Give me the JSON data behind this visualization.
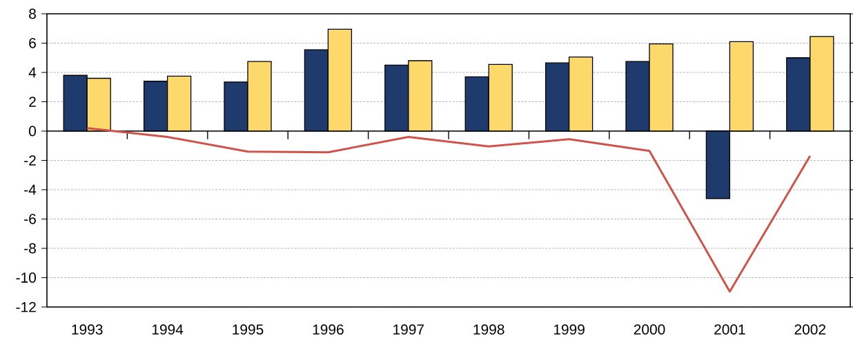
{
  "chart_data": {
    "type": "bar",
    "categories": [
      "1993",
      "1994",
      "1995",
      "1996",
      "1997",
      "1998",
      "1999",
      "2000",
      "2001",
      "2002"
    ],
    "series": [
      {
        "color": "#1f3b6e",
        "values": [
          3.8,
          3.4,
          3.35,
          5.55,
          4.5,
          3.7,
          4.65,
          4.75,
          -4.6,
          5.0
        ]
      },
      {
        "color": "#fdd86b",
        "values": [
          3.6,
          3.75,
          4.75,
          6.95,
          4.8,
          4.55,
          5.05,
          5.95,
          6.1,
          6.45
        ]
      },
      {
        "type": "line",
        "color": "#d0524a",
        "values": [
          0.2,
          -0.4,
          -1.4,
          -1.45,
          -0.4,
          -1.05,
          -0.55,
          -1.35,
          -10.95,
          -1.7
        ]
      }
    ],
    "ylim": [
      -12,
      8
    ],
    "yticks": [
      -12,
      -10,
      -8,
      -6,
      -4,
      -2,
      0,
      2,
      4,
      6,
      8
    ],
    "grid": "y"
  }
}
